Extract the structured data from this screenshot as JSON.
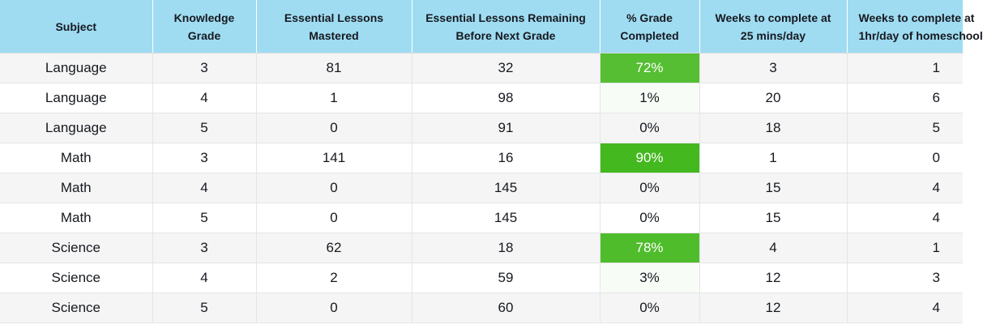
{
  "table": {
    "headers": [
      "Subject",
      "Knowledge\nGrade",
      "Essential Lessons\nMastered",
      "Essential Lessons Remaining\nBefore Next Grade",
      "% Grade\nCompleted",
      "Weeks to complete at\n25 mins/day",
      "Weeks to complete at\n1hr/day of homeschool"
    ],
    "rows": [
      {
        "subject": "Language",
        "grade": "3",
        "mastered": "81",
        "remaining": "32",
        "pct": "72%",
        "pct_value": 0.72,
        "weeks_25": "3",
        "weeks_60": "1"
      },
      {
        "subject": "Language",
        "grade": "4",
        "mastered": "1",
        "remaining": "98",
        "pct": "1%",
        "pct_value": 0.01,
        "weeks_25": "20",
        "weeks_60": "6"
      },
      {
        "subject": "Language",
        "grade": "5",
        "mastered": "0",
        "remaining": "91",
        "pct": "0%",
        "pct_value": 0.0,
        "weeks_25": "18",
        "weeks_60": "5"
      },
      {
        "subject": "Math",
        "grade": "3",
        "mastered": "141",
        "remaining": "16",
        "pct": "90%",
        "pct_value": 0.9,
        "weeks_25": "1",
        "weeks_60": "0"
      },
      {
        "subject": "Math",
        "grade": "4",
        "mastered": "0",
        "remaining": "145",
        "pct": "0%",
        "pct_value": 0.0,
        "weeks_25": "15",
        "weeks_60": "4"
      },
      {
        "subject": "Math",
        "grade": "5",
        "mastered": "0",
        "remaining": "145",
        "pct": "0%",
        "pct_value": 0.0,
        "weeks_25": "15",
        "weeks_60": "4"
      },
      {
        "subject": "Science",
        "grade": "3",
        "mastered": "62",
        "remaining": "18",
        "pct": "78%",
        "pct_value": 0.78,
        "weeks_25": "4",
        "weeks_60": "1"
      },
      {
        "subject": "Science",
        "grade": "4",
        "mastered": "2",
        "remaining": "59",
        "pct": "3%",
        "pct_value": 0.03,
        "weeks_25": "12",
        "weeks_60": "3"
      },
      {
        "subject": "Science",
        "grade": "5",
        "mastered": "0",
        "remaining": "60",
        "pct": "0%",
        "pct_value": 0.0,
        "weeks_25": "12",
        "weeks_60": "4"
      }
    ]
  },
  "colors": {
    "header_bg": "#9fdcf2",
    "heat_high": "#44b81f"
  }
}
